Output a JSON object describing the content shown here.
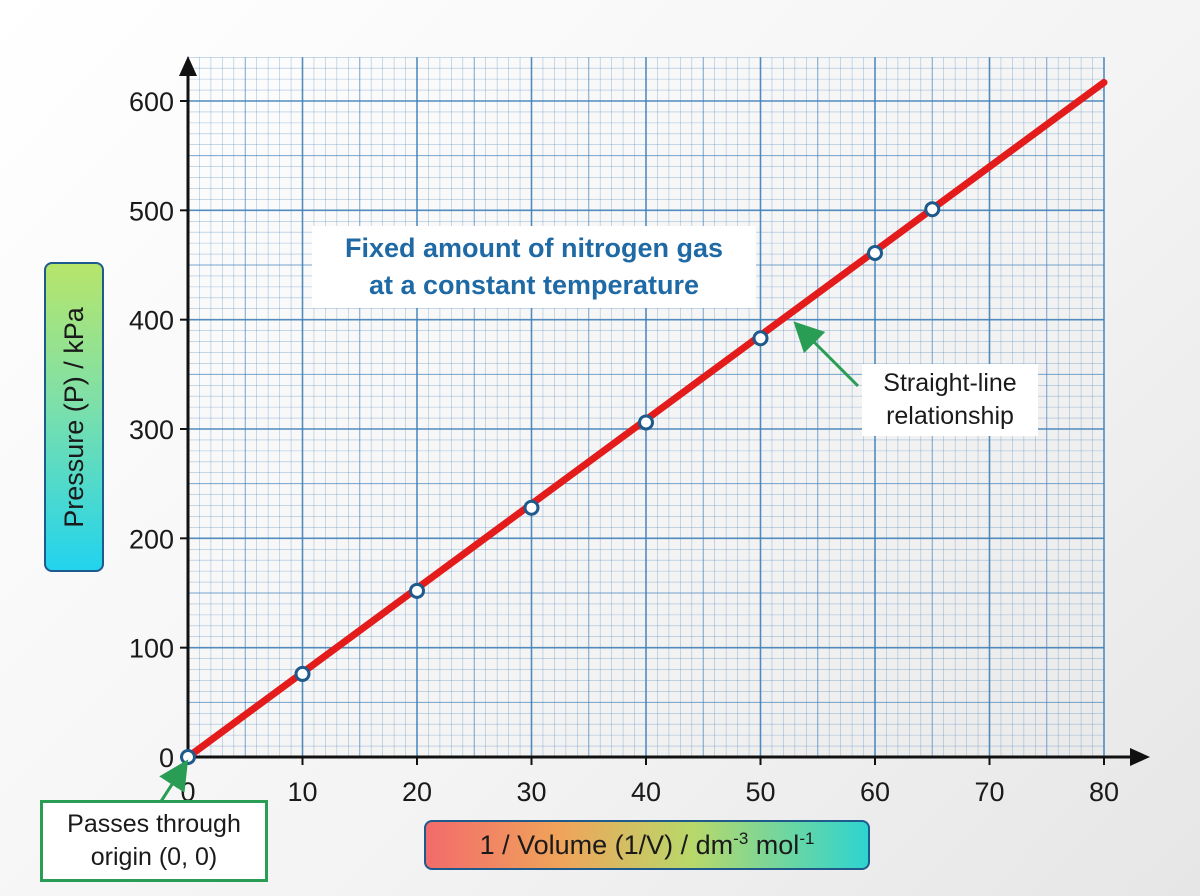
{
  "chart_data": {
    "type": "line",
    "title": "Fixed amount of nitrogen gas at a constant temperature",
    "title_lines": [
      "Fixed amount of nitrogen gas",
      "at a constant temperature"
    ],
    "xlabel": "1 / Volume (1/V) / dm",
    "xlabel_exp1": "-3",
    "xlabel_mid": " mol",
    "xlabel_exp2": "-1",
    "ylabel": "Pressure (P) / kPa",
    "xlim": [
      0,
      80
    ],
    "ylim": [
      0,
      600
    ],
    "x_ticks": [
      0,
      10,
      20,
      30,
      40,
      50,
      60,
      70,
      80
    ],
    "y_ticks": [
      0,
      100,
      200,
      300,
      400,
      500,
      600
    ],
    "grid": true,
    "series": [
      {
        "color": "#e31b1b",
        "points": [
          [
            0,
            0
          ],
          [
            10,
            76
          ],
          [
            20,
            152
          ],
          [
            30,
            228
          ],
          [
            40,
            306
          ],
          [
            50,
            383
          ],
          [
            60,
            461
          ],
          [
            65,
            501
          ]
        ],
        "line_to": [
          80,
          617
        ]
      }
    ],
    "annotations": {
      "straight_line": [
        "Straight-line",
        "relationship"
      ],
      "origin": [
        "Passes through",
        "origin (0, 0)"
      ]
    },
    "colors": {
      "grid": "#3f7fb8",
      "line": "#e31b1b",
      "marker_edge": "#1f5a8c",
      "title_text": "#1f6aa5",
      "annotation_arrow": "#2a9d55"
    }
  }
}
